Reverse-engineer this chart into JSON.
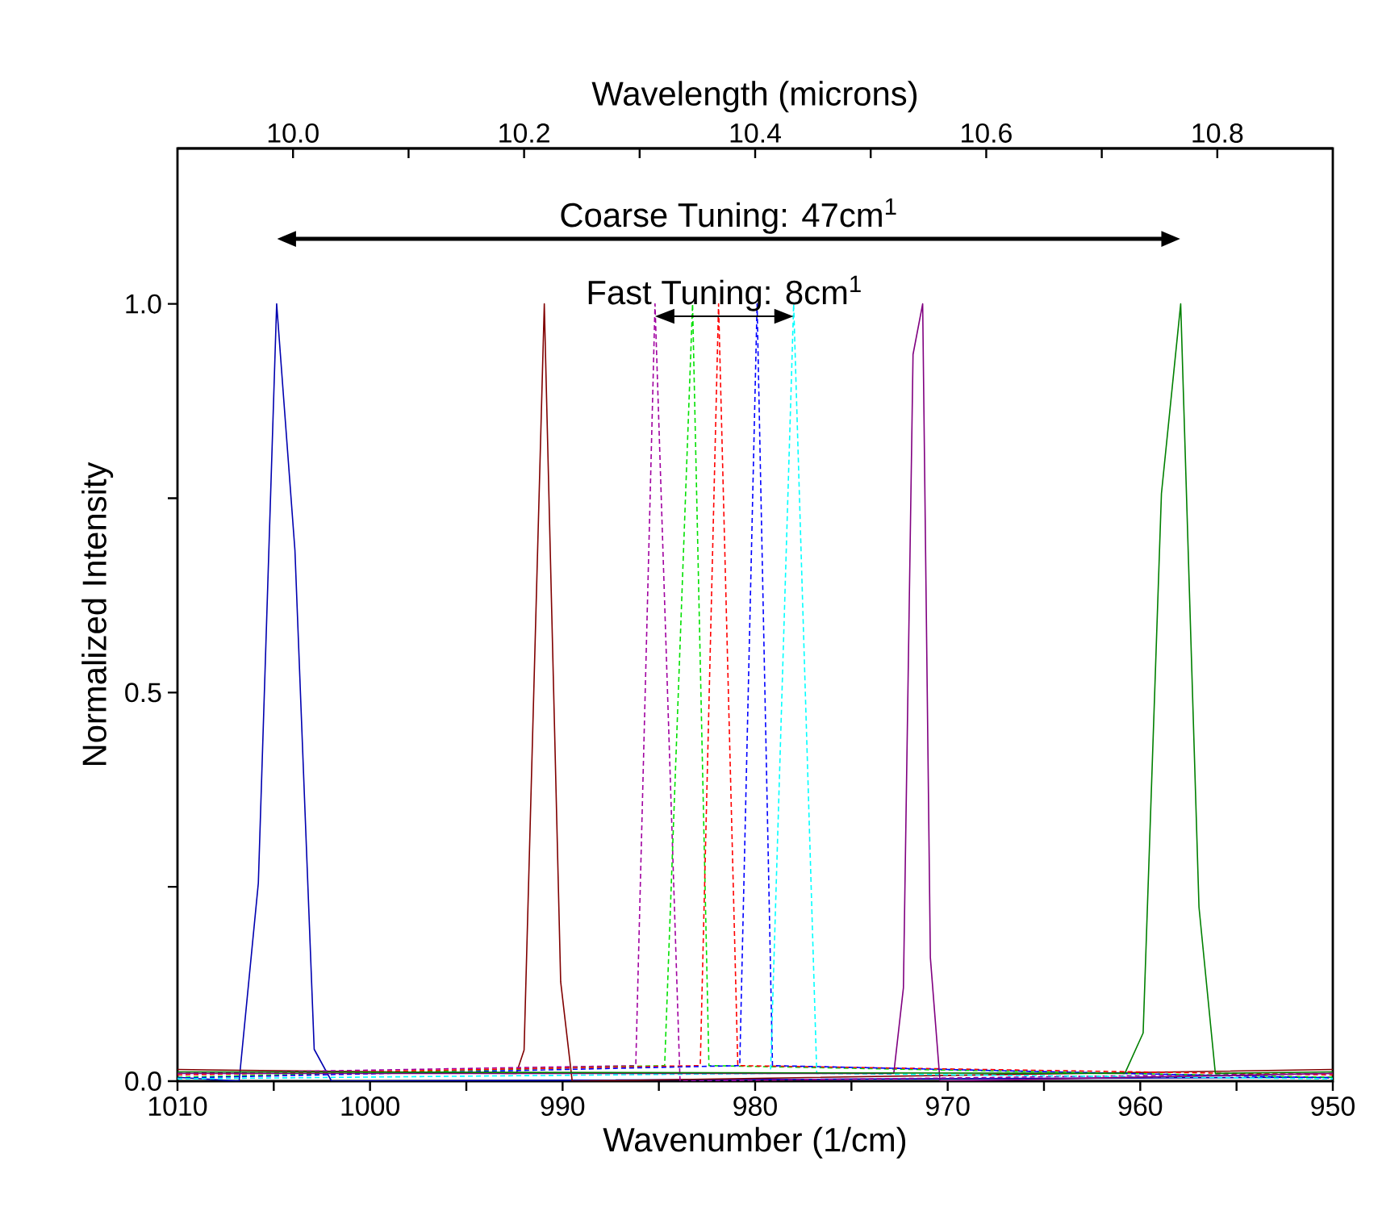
{
  "chart_data": {
    "type": "line",
    "xlabel": "Wavenumber (1/cm)",
    "ylabel": "Normalized Intensity",
    "x2label": "Wavelength (microns)",
    "xlim": [
      1010,
      950
    ],
    "ylim": [
      0,
      1.2
    ],
    "x2lim": [
      9.9,
      10.9
    ],
    "xticks": [
      1010,
      {
        "value": 1005,
        "label": null
      },
      1000,
      {
        "value": 995,
        "label": null
      },
      990,
      {
        "value": 985,
        "label": null
      },
      980,
      {
        "value": 975,
        "label": null
      },
      970,
      {
        "value": 965,
        "label": null
      },
      960,
      {
        "value": 955,
        "label": null
      },
      950
    ],
    "yticks": [
      {
        "value": 0,
        "label": "0.0"
      },
      {
        "value": 0.25,
        "label": null
      },
      {
        "value": 0.5,
        "label": "0.5"
      },
      {
        "value": 0.75,
        "label": null
      },
      {
        "value": 1.0,
        "label": "1.0"
      }
    ],
    "x2ticks": [
      {
        "value": 10.0,
        "label": "10.0"
      },
      {
        "value": 10.1,
        "label": null
      },
      {
        "value": 10.2,
        "label": "10.2"
      },
      {
        "value": 10.3,
        "label": null
      },
      {
        "value": 10.4,
        "label": "10.4"
      },
      {
        "value": 10.5,
        "label": null
      },
      {
        "value": 10.6,
        "label": "10.6"
      },
      {
        "value": 10.7,
        "label": null
      },
      {
        "value": 10.8,
        "label": "10.8"
      }
    ],
    "grid": false,
    "marker": "none",
    "line_style": "solid",
    "annotations": [
      "Coarse Tuning: 47cm$^{1}$",
      "Fast Tuning: 8cm$^{1}$"
    ],
    "series": [
      {
        "color": "#0000b0",
        "x": [
          1010,
          1006.8,
          1005.8,
          1004.85,
          1003.9,
          1002.9,
          1002.0,
          950
        ],
        "values": [
          0.005,
          0,
          0.255,
          1.0,
          0.683,
          0.041,
          0,
          0.005
        ]
      },
      {
        "color": "#800000",
        "x": [
          1010,
          992.4,
          992.0,
          990.95,
          990.1,
          989.5,
          950
        ],
        "values": [
          0.015,
          0.01,
          0.04,
          1.0,
          0.128,
          0,
          0.015
        ]
      },
      {
        "color": "#a000a0",
        "line_style": "dashed",
        "x": [
          1010,
          986.2,
          985.2,
          983.9,
          950
        ],
        "values": [
          0.01,
          0.02,
          1.0,
          0,
          0.01
        ]
      },
      {
        "color": "#00e000",
        "line_style": "dashed",
        "x": [
          1010,
          984.7,
          983.25,
          982.4,
          950
        ],
        "values": [
          0.005,
          0.02,
          1.0,
          0.02,
          0.005
        ]
      },
      {
        "color": "#ff0000",
        "line_style": "dashed",
        "x": [
          1010,
          982.85,
          981.9,
          980.9,
          950
        ],
        "values": [
          0.008,
          0.02,
          1.0,
          0.02,
          0.008
        ]
      },
      {
        "color": "#0000ff",
        "line_style": "dashed",
        "x": [
          1010,
          980.8,
          979.9,
          979.1,
          950
        ],
        "values": [
          0.004,
          0.02,
          1.0,
          0.02,
          0.004
        ]
      },
      {
        "color": "#00ffff",
        "line_style": "dashed",
        "x": [
          1010,
          979.2,
          978.0,
          976.8,
          950
        ],
        "values": [
          0.003,
          0.01,
          1.0,
          0.01,
          0.003
        ]
      },
      {
        "color": "#800080",
        "x": [
          1010,
          972.8,
          972.3,
          971.8,
          971.3,
          970.9,
          970.4,
          950
        ],
        "values": [
          0.01,
          0.01,
          0.12,
          0.935,
          1.0,
          0.159,
          0,
          0.01
        ]
      },
      {
        "color": "#008000",
        "x": [
          1010,
          960.8,
          959.85,
          958.9,
          957.9,
          956.95,
          956.1,
          950
        ],
        "values": [
          0.012,
          0.01,
          0.062,
          0.756,
          1.0,
          0.224,
          0.01,
          0.012
        ]
      }
    ]
  }
}
